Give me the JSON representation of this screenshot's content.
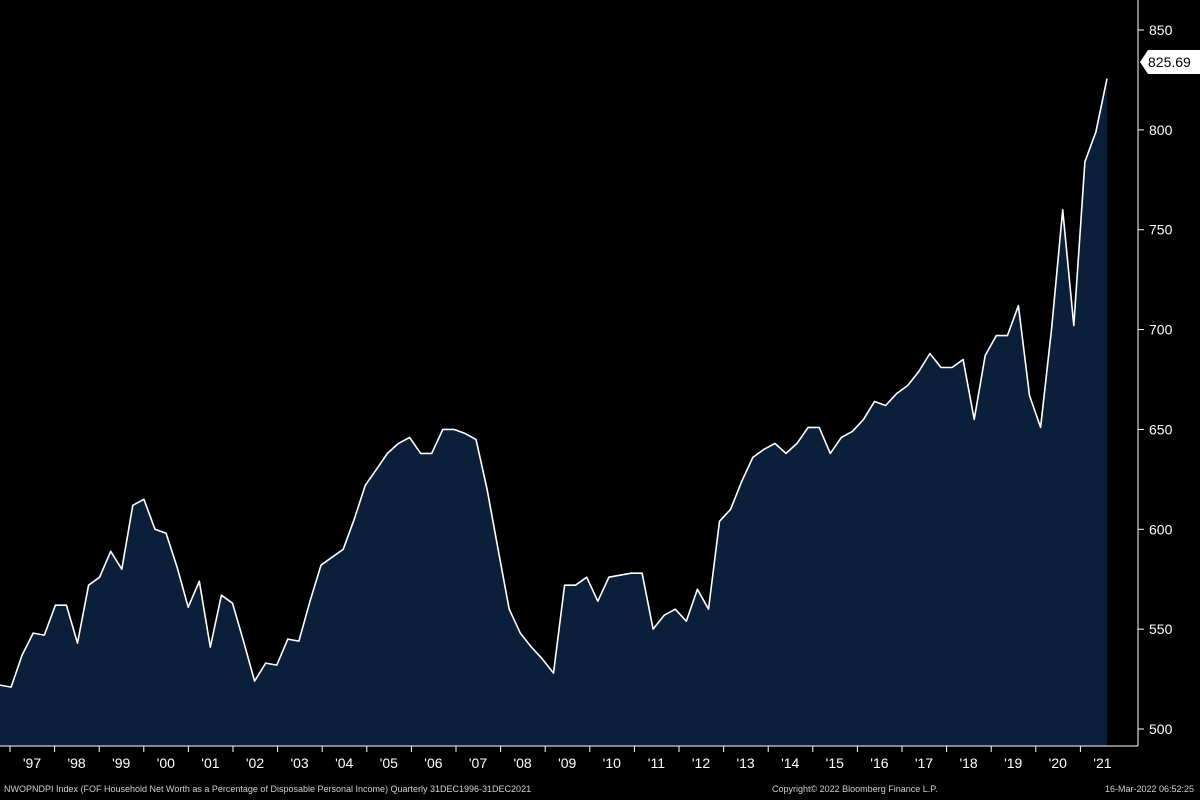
{
  "chart_data": {
    "type": "area",
    "title": "",
    "xlabel": "",
    "ylabel": "",
    "ylim": [
      490,
      855
    ],
    "y_ticks": [
      500,
      550,
      600,
      650,
      700,
      750,
      800,
      850
    ],
    "x_tick_labels": [
      "'97",
      "'98",
      "'99",
      "'00",
      "'01",
      "'02",
      "'03",
      "'04",
      "'05",
      "'06",
      "'07",
      "'08",
      "'09",
      "'10",
      "'11",
      "'12",
      "'13",
      "'14",
      "'15",
      "'16",
      "'17",
      "'18",
      "'19",
      "'20",
      "'21"
    ],
    "series": [
      {
        "values": [
          522,
          521,
          537,
          548,
          547,
          562,
          562,
          543,
          572,
          576,
          589,
          580,
          612,
          615,
          600,
          598,
          581,
          561,
          574,
          541,
          567,
          563,
          544,
          524,
          533,
          532,
          545,
          544,
          564,
          582,
          586,
          590,
          605,
          622,
          630,
          638,
          643,
          646,
          638,
          638,
          650,
          650,
          648,
          645,
          620,
          590,
          560,
          548,
          541,
          535,
          528,
          572,
          572,
          576,
          564,
          576,
          577,
          578,
          578,
          550,
          557,
          560,
          554,
          570,
          560,
          604,
          610,
          624,
          636,
          640,
          643,
          638,
          643,
          651,
          651,
          638,
          646,
          649,
          655,
          664,
          662,
          668,
          672,
          679,
          688,
          681,
          681,
          685,
          655,
          687,
          697,
          697,
          712,
          667,
          651,
          701,
          760,
          702,
          784,
          799,
          825.69
        ]
      }
    ],
    "last_value_label": "825.69",
    "grid": false,
    "colors": {
      "fill": "#0c1f3a",
      "line": "#ffffff",
      "background": "#000000"
    }
  },
  "footer": {
    "ticker": "NWOPNDPI Index  (FOF Household Net Worth as a Percentage of Disposable Personal Income)   Quarterly 31DEC1996-31DEC2021",
    "copyright": "Copyright© 2022 Bloomberg Finance L.P.",
    "timestamp": "16-Mar-2022 06:52:25"
  }
}
